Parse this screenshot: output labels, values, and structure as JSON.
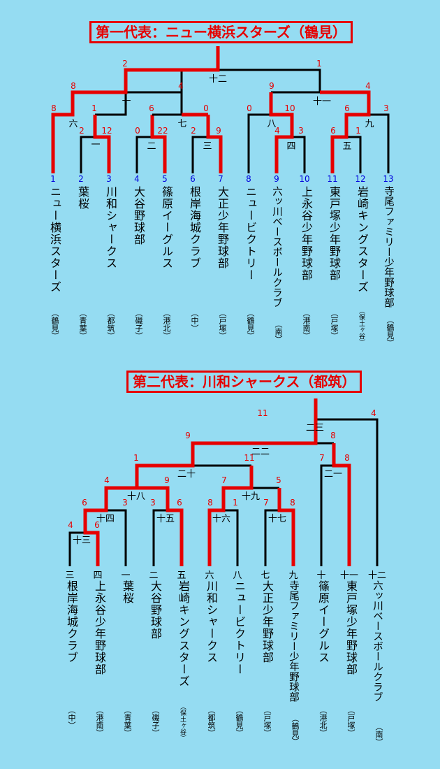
{
  "bracket1": {
    "title": "第一代表：ニュー横浜スターズ（鶴見）",
    "teams": [
      {
        "num": "1",
        "name": "ニュー横浜スターズ",
        "region": "（鶴見）"
      },
      {
        "num": "2",
        "name": "葉桜",
        "region": "（青葉）"
      },
      {
        "num": "3",
        "name": "川和シャークス",
        "region": "（都筑）"
      },
      {
        "num": "4",
        "name": "大谷野球部",
        "region": "（磯子）"
      },
      {
        "num": "5",
        "name": "篠原イーグルス",
        "region": "（港北）"
      },
      {
        "num": "6",
        "name": "根岸海城クラブ",
        "region": "（中）"
      },
      {
        "num": "7",
        "name": "大正少年野球部",
        "region": "（戸塚）"
      },
      {
        "num": "8",
        "name": "ニュービクトリー",
        "region": "（鶴見）"
      },
      {
        "num": "9",
        "name": "六ッ川ベースボールクラブ",
        "region": "（南）"
      },
      {
        "num": "10",
        "name": "上永谷少年野球部",
        "region": "（港南）"
      },
      {
        "num": "11",
        "name": "東戸塚少年野球部",
        "region": "（戸塚）"
      },
      {
        "num": "12",
        "name": "岩崎キングスターズ",
        "region": "（保土ヶ谷）"
      },
      {
        "num": "13",
        "name": "寺尾ファミリー少年野球部",
        "region": "（鶴見）"
      }
    ],
    "matches": {
      "m1": "一",
      "m2": "二",
      "m3": "三",
      "m4": "四",
      "m5": "五",
      "m6": "六",
      "m7": "七",
      "m8": "八",
      "m9": "九",
      "m10": "十",
      "m11": "十一",
      "m12": "十二"
    },
    "scores": {
      "m1a": "2",
      "m1b": "12",
      "m2a": "0",
      "m2b": "22",
      "m3a": "2",
      "m3b": "9",
      "m4a": "4",
      "m4b": "3",
      "m5a": "6",
      "m5b": "1",
      "m6a": "8",
      "m6b": "1",
      "m7a": "6",
      "m7b": "0",
      "m8a": "0",
      "m8b": "10",
      "m9a": "6",
      "m9b": "3",
      "m10a": "8",
      "m10b": "4",
      "m11a": "9",
      "m11b": "4",
      "m12a": "2",
      "m12b": "1"
    }
  },
  "bracket2": {
    "title": "第二代表：川和シャークス（都筑）",
    "teams": [
      {
        "num": "三",
        "name": "根岸海城クラブ",
        "region": "（中）"
      },
      {
        "num": "四",
        "name": "上永谷少年野球部",
        "region": "（港南）"
      },
      {
        "num": "一",
        "name": "葉桜",
        "region": "（青葉）"
      },
      {
        "num": "二",
        "name": "大谷野球部",
        "region": "（磯子）"
      },
      {
        "num": "五",
        "name": "岩崎キングスターズ",
        "region": "（保土ヶ谷）"
      },
      {
        "num": "六",
        "name": "川和シャークス",
        "region": "（都筑）"
      },
      {
        "num": "八",
        "name": "ニュービクトリー",
        "region": "（鶴見）"
      },
      {
        "num": "七",
        "name": "大正少年野球部",
        "region": "（戸塚）"
      },
      {
        "num": "九",
        "name": "寺尾ファミリー少年野球部",
        "region": "（鶴見）"
      },
      {
        "num": "十",
        "name": "篠原イーグルス",
        "region": "（港北）"
      },
      {
        "num": "十一",
        "name": "東戸塚少年野球部",
        "region": "（戸塚）"
      },
      {
        "num": "十二",
        "name": "六ッ川ベースボールクラブ",
        "region": "（南）"
      }
    ],
    "matches": {
      "m13": "十三",
      "m14": "十四",
      "m15": "十五",
      "m16": "十六",
      "m17": "十七",
      "m18": "十八",
      "m19": "十九",
      "m20": "二十",
      "m21": "二一",
      "m22": "二二",
      "m23": "二三"
    },
    "scores": {
      "m13a": "4",
      "m13b": "6",
      "m14a": "6",
      "m14b": "3",
      "m15a": "3",
      "m15b": "6",
      "m16a": "8",
      "m16b": "1",
      "m17a": "7",
      "m17b": "8",
      "m18a": "4",
      "m18b": "9",
      "m19a": "7",
      "m19b": "5",
      "m20a": "1",
      "m20b": "11",
      "m21a": "7",
      "m21b": "8",
      "m22a": "9",
      "m22b": "8",
      "m23a": "11",
      "m23b": "4"
    }
  },
  "colors": {
    "win": "#e60000",
    "line": "#000000",
    "bg": "#95dcf2",
    "team_num": "#0000dd"
  }
}
